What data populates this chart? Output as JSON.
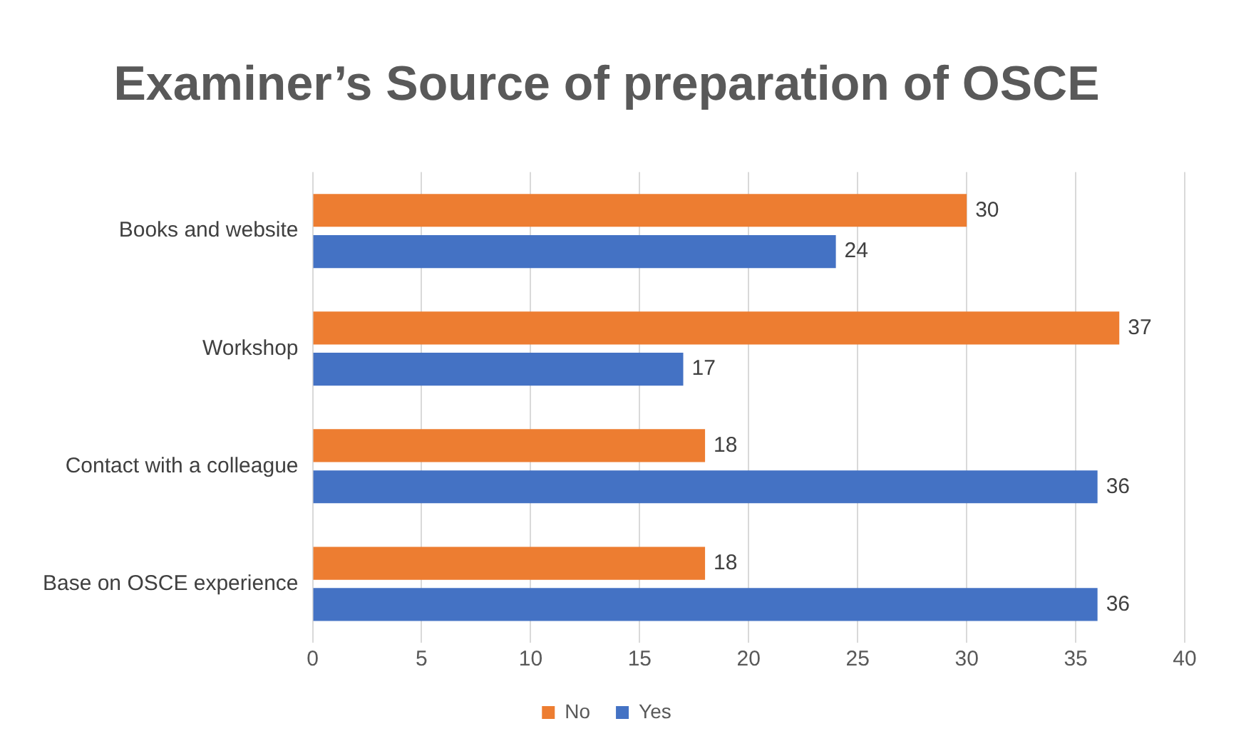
{
  "chart_data": {
    "type": "bar",
    "orientation": "horizontal",
    "title": "Examiner’s Source of preparation of OSCE",
    "categories": [
      "Books and website",
      "Workshop",
      "Contact with a colleague",
      "Base on OSCE experience"
    ],
    "series": [
      {
        "name": "No",
        "color": "#ed7d31",
        "values": [
          30,
          37,
          18,
          18
        ]
      },
      {
        "name": "Yes",
        "color": "#4472c4",
        "values": [
          24,
          17,
          36,
          36
        ]
      }
    ],
    "xlim": [
      0,
      40
    ],
    "xticks": [
      0,
      5,
      10,
      15,
      20,
      25,
      30,
      35,
      40
    ],
    "grid": "x",
    "legend": "bottom",
    "data_labels": true
  }
}
